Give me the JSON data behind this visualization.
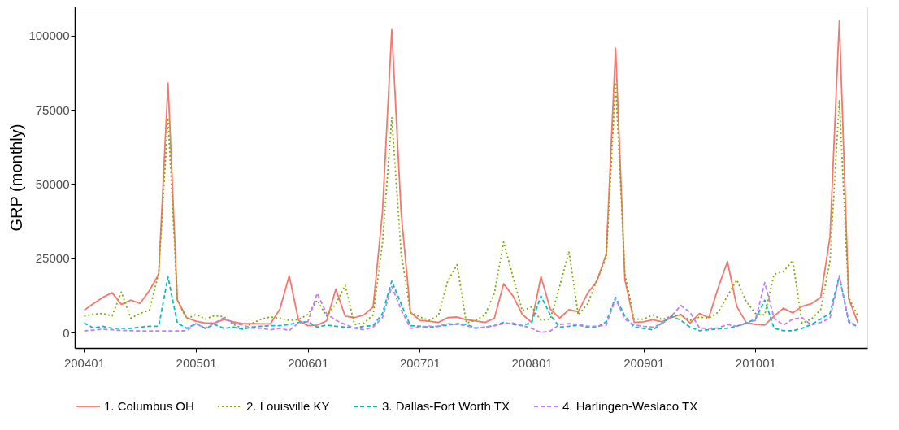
{
  "chart_data": {
    "type": "line",
    "ylabel": "GRP (monthly)",
    "categories": [
      "200401",
      null,
      null,
      null,
      null,
      null,
      null,
      null,
      null,
      null,
      null,
      null,
      "200501",
      null,
      null,
      null,
      null,
      null,
      null,
      null,
      null,
      null,
      null,
      null,
      "200601",
      null,
      null,
      null,
      null,
      null,
      null,
      null,
      null,
      null,
      null,
      null,
      "200701",
      null,
      null,
      null,
      null,
      null,
      null,
      null,
      null,
      null,
      null,
      null,
      "200801",
      null,
      null,
      null,
      null,
      null,
      null,
      null,
      null,
      null,
      null,
      null,
      "200901",
      null,
      null,
      null,
      null,
      null,
      null,
      null,
      null,
      null,
      null,
      null,
      "201001",
      null,
      null,
      null,
      null,
      null,
      null,
      null,
      null,
      null,
      null,
      null
    ],
    "ylim": [
      -5200,
      109800
    ],
    "yticks": [
      0,
      25000,
      50000,
      75000,
      100000
    ],
    "grid": false,
    "legend": "bottom",
    "marker": "none",
    "series": [
      {
        "name": "1. Columbus OH",
        "color": "#f8766d",
        "line_style": "solid",
        "values": [
          7500,
          9700,
          11800,
          13400,
          9500,
          10900,
          9800,
          14100,
          19600,
          84000,
          10900,
          5000,
          3800,
          3200,
          3200,
          4400,
          3600,
          3000,
          3000,
          2900,
          3000,
          7900,
          19100,
          4100,
          2300,
          2500,
          3900,
          14600,
          5500,
          5000,
          5900,
          8600,
          40500,
          102000,
          40500,
          6800,
          4100,
          3800,
          3400,
          5000,
          5200,
          4300,
          3900,
          3400,
          4800,
          16400,
          12300,
          6100,
          3400,
          18800,
          7900,
          4800,
          7700,
          7000,
          13200,
          17300,
          26400,
          95800,
          17700,
          3400,
          3600,
          4300,
          3600,
          5000,
          6100,
          3200,
          6400,
          5000,
          15000,
          23900,
          8800,
          3400,
          2700,
          2500,
          5500,
          8200,
          6600,
          8800,
          9700,
          11800,
          32300,
          105000,
          11400,
          3200
        ]
      },
      {
        "name": "2. Louisville KY",
        "color": "#7cae00",
        "line_style": "dotted",
        "values": [
          5500,
          6200,
          6400,
          5600,
          13600,
          4800,
          6400,
          7500,
          20000,
          72300,
          10900,
          4500,
          6100,
          4500,
          5700,
          5300,
          2700,
          1400,
          3000,
          4500,
          5200,
          4800,
          4100,
          4300,
          6100,
          10900,
          5500,
          9600,
          15900,
          2700,
          3200,
          5900,
          30000,
          72300,
          26800,
          6800,
          5200,
          4100,
          5700,
          17300,
          22800,
          3200,
          4100,
          5900,
          13200,
          30500,
          18700,
          7300,
          8600,
          4100,
          4500,
          15500,
          27300,
          5900,
          9600,
          17700,
          25000,
          84200,
          19600,
          4500,
          4500,
          5900,
          4300,
          5500,
          5900,
          4100,
          5200,
          4800,
          6800,
          12300,
          17700,
          10500,
          6400,
          5900,
          19600,
          20500,
          24300,
          3200,
          4500,
          7700,
          24100,
          78300,
          11800,
          5500
        ]
      },
      {
        "name": "3. Dallas-Fort Worth TX",
        "color": "#00bfc4",
        "line_style": "dashed",
        "values": [
          3200,
          1500,
          2100,
          1400,
          1400,
          1400,
          1800,
          2100,
          2100,
          18700,
          3200,
          1400,
          3000,
          1400,
          2700,
          1400,
          1800,
          1100,
          1800,
          2100,
          2300,
          2300,
          2700,
          3400,
          3600,
          1800,
          2500,
          2100,
          1800,
          1500,
          2100,
          2300,
          6400,
          17300,
          9600,
          2300,
          2100,
          1800,
          2100,
          2500,
          3000,
          2700,
          1500,
          1800,
          2300,
          3400,
          2700,
          2300,
          3400,
          12300,
          5900,
          1800,
          2100,
          2500,
          1800,
          1800,
          3600,
          11800,
          5500,
          1800,
          1400,
          900,
          3200,
          5500,
          4100,
          1800,
          600,
          900,
          1200,
          1500,
          2100,
          3200,
          4500,
          10900,
          1400,
          600,
          600,
          1400,
          2700,
          4500,
          6400,
          19100,
          3600,
          1800
        ]
      },
      {
        "name": "4. Harlingen-Weslaco TX",
        "color": "#c77cff",
        "line_style": "dashed",
        "values": [
          500,
          800,
          1100,
          900,
          700,
          600,
          500,
          500,
          500,
          500,
          500,
          600,
          3000,
          1400,
          3200,
          5000,
          3200,
          2500,
          1500,
          1400,
          900,
          1400,
          700,
          3200,
          3600,
          13200,
          6400,
          4100,
          2700,
          1500,
          900,
          1800,
          5000,
          15500,
          7700,
          1400,
          1800,
          2100,
          2100,
          3000,
          2700,
          2300,
          1400,
          1800,
          2300,
          3000,
          3200,
          2300,
          1400,
          0,
          500,
          2700,
          3000,
          2700,
          2100,
          2100,
          2500,
          11400,
          4500,
          2500,
          2100,
          1800,
          3000,
          5500,
          9100,
          6800,
          1500,
          1400,
          1500,
          2700,
          2100,
          3000,
          4100,
          16800,
          4800,
          2500,
          4500,
          5000,
          2500,
          3400,
          4800,
          18700,
          4100,
          1800
        ]
      }
    ]
  }
}
